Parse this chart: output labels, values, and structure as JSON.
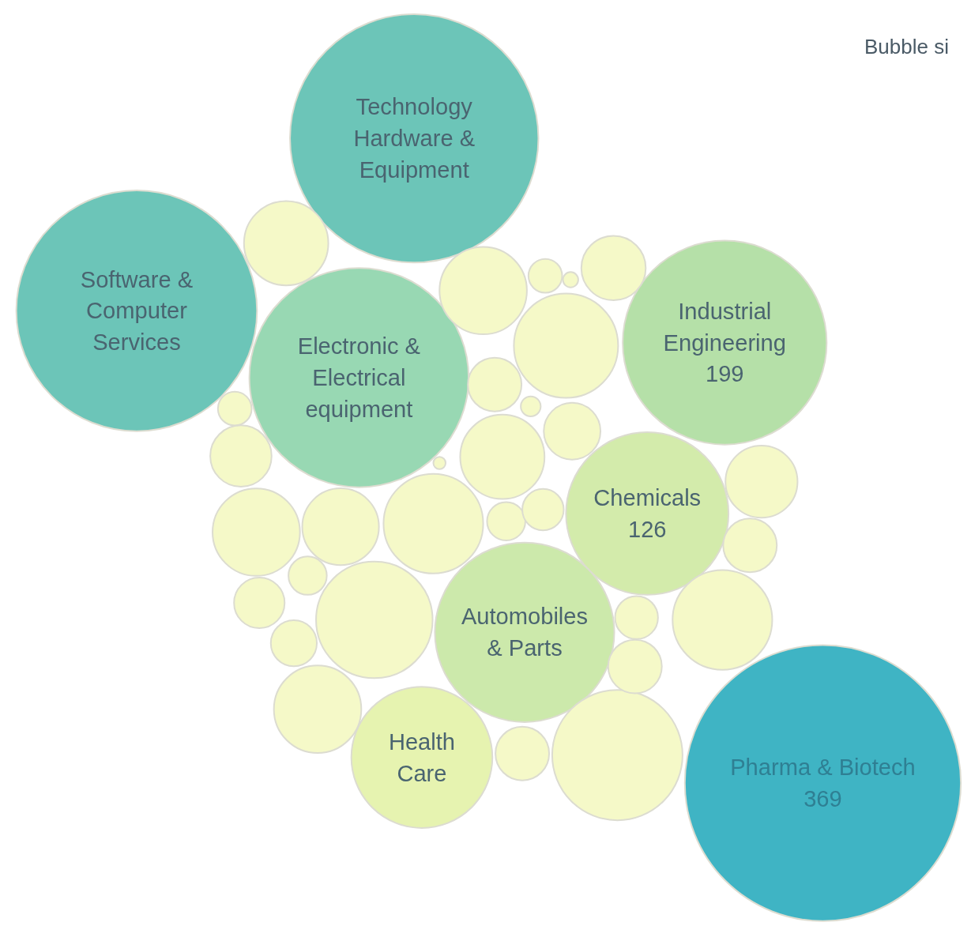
{
  "chart_data": {
    "type": "other",
    "data_labels": true,
    "annotations": [
      "Bubble si"
    ],
    "categories": [
      "Technology Hardware & Equipment",
      "Software & Computer Services",
      "Electronic & Electrical equipment",
      "Industrial Engineering",
      "Chemicals",
      "Automobiles & Parts",
      "Health Care",
      "Pharma & Biotech",
      null,
      null,
      null,
      null,
      null,
      null,
      null,
      null,
      null,
      null,
      null,
      null,
      null,
      null,
      null,
      null,
      null,
      null,
      null,
      null,
      null,
      null,
      null,
      null,
      null,
      null,
      null,
      null,
      null,
      null
    ],
    "values": [
      null,
      null,
      null,
      199,
      126,
      null,
      null,
      369,
      null,
      null,
      null,
      null,
      null,
      null,
      null,
      null,
      null,
      null,
      null,
      null,
      null,
      null,
      null,
      null,
      null,
      null,
      null,
      null,
      null,
      null,
      null,
      null,
      null,
      null,
      null,
      null,
      null,
      null
    ],
    "colors": [
      "#6cc5b8",
      "#6cc5b8",
      "#98d8b3",
      "#b5e0a8",
      "#d3ebab",
      "#cce9ab",
      "#e6f3b0",
      "#3fb4c4",
      "#f5f9c8",
      "#f5f9c8",
      "#f5f9c8",
      "#f5f9c8",
      "#f5f9c8",
      "#f5f9c8",
      "#f5f9c8",
      "#f5f9c8",
      "#f5f9c8",
      "#f5f9c8",
      "#f5f9c8",
      "#f5f9c8",
      "#f5f9c8",
      "#f5f9c8",
      "#f5f9c8",
      "#f5f9c8",
      "#f5f9c8",
      "#f5f9c8",
      "#f5f9c8",
      "#f5f9c8",
      "#f5f9c8",
      "#f5f9c8",
      "#f5f9c8",
      "#f5f9c8",
      "#f5f9c8",
      "#f5f9c8",
      "#f5f9c8",
      "#f5f9c8",
      "#f5f9c8",
      "#f5f9c8"
    ]
  }
}
